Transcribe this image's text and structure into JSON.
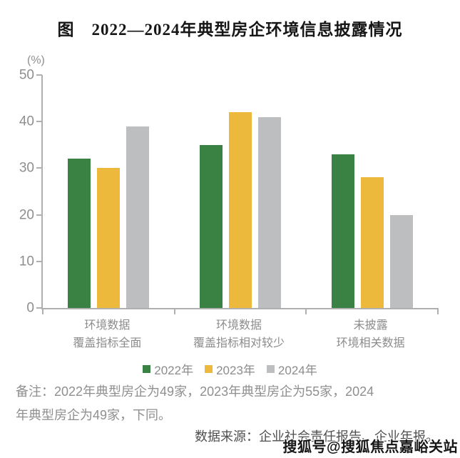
{
  "title": "图　2022—2024年典型房企环境信息披露情况",
  "chart_data": {
    "type": "bar",
    "title": "图 2022—2024年典型房企环境信息披露情况",
    "unit_label": "(%)",
    "xlabel": "",
    "ylabel": "(%)",
    "categories": [
      "环境数据\n覆盖指标全面",
      "环境数据\n覆盖指标相对较少",
      "未披露\n环境相关数据"
    ],
    "series": [
      {
        "name": "2022年",
        "color": "#3A8243",
        "values": [
          32,
          35,
          33
        ]
      },
      {
        "name": "2023年",
        "color": "#EDB93C",
        "values": [
          30,
          42,
          28
        ]
      },
      {
        "name": "2024年",
        "color": "#BDBEC0",
        "values": [
          39,
          41,
          20
        ]
      }
    ],
    "ylim": [
      0,
      50
    ],
    "yticks": [
      0,
      10,
      20,
      30,
      40,
      50
    ],
    "grid": false,
    "legend_position": "bottom"
  },
  "notes": {
    "remark_line1": "备注：2022年典型房企为49家，2023年典型房企为55家，2024",
    "remark_line2": "年典型房企为49家，下同。",
    "source": "数据来源：企业社会责任报告、企业年报。"
  },
  "watermark": "搜狐号@搜狐焦点嘉峪关站",
  "colors": {
    "axis": "#AFAFAF",
    "tick_text": "#8e8e8e",
    "title_text": "#161616",
    "source_text": "#4f4f4f"
  }
}
